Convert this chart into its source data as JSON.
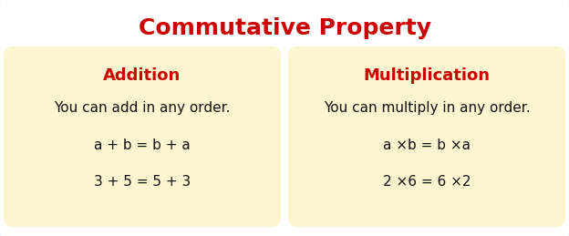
{
  "title": "Commutative Property",
  "title_color": "#cc0000",
  "title_fontsize": 18,
  "background_color": "#ffffff",
  "border_color": "#5b9bd5",
  "box_fill_color": "#fdf5d0",
  "left_box": {
    "heading": "Addition",
    "heading_color": "#cc0000",
    "heading_fontsize": 13,
    "line0": "You can add in any order.",
    "line1": "a + b = b + a",
    "line2": "3 + 5 = 5 + 3",
    "text_fontsize": 11
  },
  "right_box": {
    "heading": "Multiplication",
    "heading_color": "#cc0000",
    "heading_fontsize": 13,
    "line0": "You can multiply in any order.",
    "line1": "a ×b = b ×a",
    "line2": "2 ×6 = 6 ×2",
    "text_fontsize": 11
  }
}
